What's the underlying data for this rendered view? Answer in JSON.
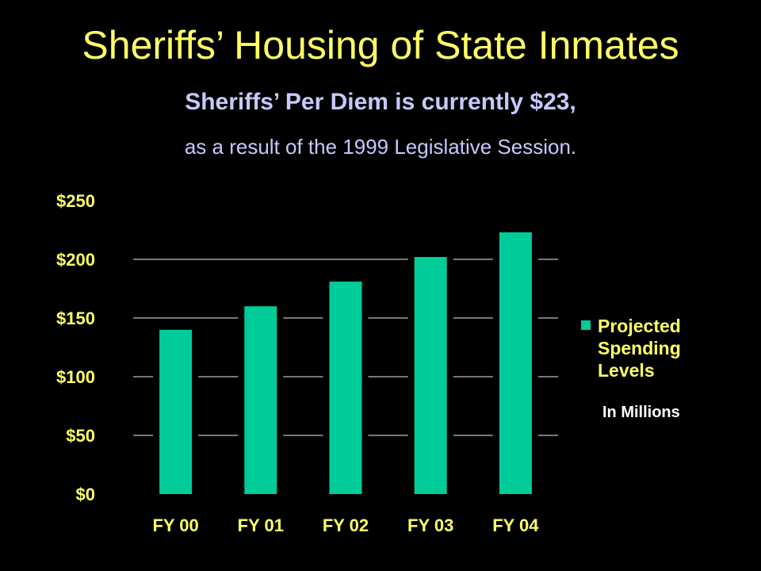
{
  "slide": {
    "title": "Sheriffs’ Housing of State Inmates",
    "subtitle": "Sheriffs’ Per Diem is currently $23,",
    "subtitle2": "as a result of the 1999 Legislative Session."
  },
  "colors": {
    "background": "#000000",
    "title": "#FFFF66",
    "subtitle": "#C8C8FF",
    "bar": "#00CC99",
    "gridline": "#C0C0C0",
    "note": "#FFFFFF"
  },
  "chart_data": {
    "type": "bar",
    "categories": [
      "FY 00",
      "FY 01",
      "FY 02",
      "FY 03",
      "FY 04"
    ],
    "series": [
      {
        "name": "Projected Spending Levels",
        "values": [
          140,
          160,
          181,
          202,
          223
        ]
      }
    ],
    "ylim": [
      0,
      250
    ],
    "yticks": [
      0,
      50,
      100,
      150,
      200,
      250
    ],
    "ytick_labels": [
      "$0",
      "$50",
      "$100",
      "$150",
      "$200",
      "$250"
    ],
    "grid": true,
    "legend_position": "right",
    "legend_lines": [
      "Projected",
      "Spending",
      "Levels"
    ],
    "annotation": "In Millions"
  }
}
